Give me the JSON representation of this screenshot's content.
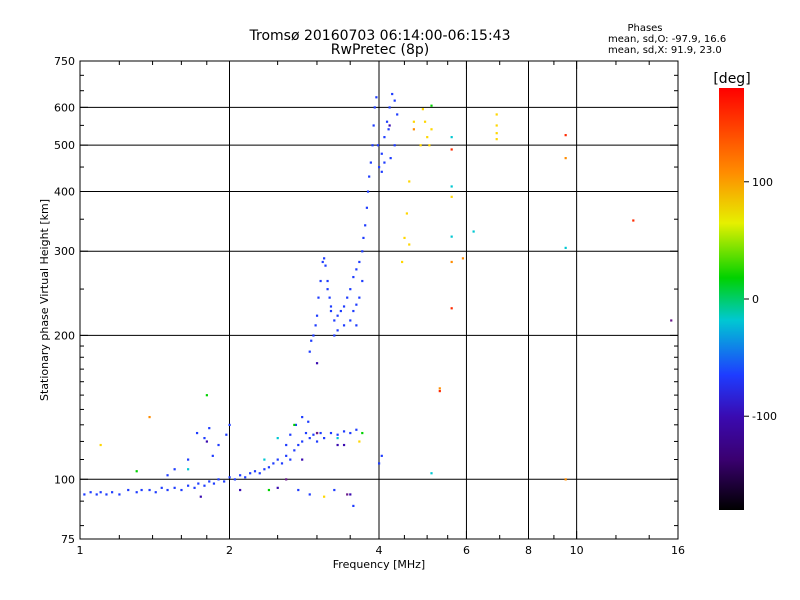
{
  "header": {
    "title": "Tromsø 20160703 06:14:00-06:15:43",
    "subtitle": "RwPretec (8p)",
    "stats_title": "Phases",
    "stats_line1": "mean, sd,O: -97.9, 16.6",
    "stats_line2": "mean, sd,X:  91.9, 23.0"
  },
  "colorbar": {
    "unit_label": "[deg]",
    "ticks": [
      {
        "value": 100,
        "label": "100"
      },
      {
        "value": 0,
        "label": "0"
      },
      {
        "value": -100,
        "label": "-100"
      }
    ],
    "range": [
      -180,
      180
    ]
  },
  "chart_data": {
    "type": "scatter",
    "xlabel": "Frequency [MHz]",
    "ylabel": "Stationary phase Virtual Height [km]",
    "xscale": "log",
    "yscale": "log",
    "xlim": [
      1,
      16
    ],
    "ylim": [
      75,
      750
    ],
    "x_ticks": [
      {
        "value": 1,
        "label": "1"
      },
      {
        "value": 2,
        "label": "2"
      },
      {
        "value": 4,
        "label": "4"
      },
      {
        "value": 6,
        "label": "6"
      },
      {
        "value": 8,
        "label": "8"
      },
      {
        "value": 10,
        "label": "10"
      },
      {
        "value": 16,
        "label": "16"
      }
    ],
    "y_ticks": [
      {
        "value": 75,
        "label": "75"
      },
      {
        "value": 100,
        "label": "100"
      },
      {
        "value": 200,
        "label": "200"
      },
      {
        "value": 300,
        "label": "300"
      },
      {
        "value": 400,
        "label": "400"
      },
      {
        "value": 500,
        "label": "500"
      },
      {
        "value": 600,
        "label": "600"
      },
      {
        "value": 750,
        "label": "750"
      }
    ],
    "grid_x": [
      2,
      4,
      6,
      8,
      10
    ],
    "grid_y": [
      100,
      200,
      300,
      400,
      500,
      600
    ],
    "minor_x": [
      1.2,
      1.4,
      1.6,
      1.8,
      2.5,
      3,
      3.5,
      4.5,
      5,
      5.5,
      7,
      9,
      12,
      14
    ],
    "minor_y": [
      80,
      90,
      110,
      120,
      130,
      140,
      150,
      160,
      170,
      180,
      190,
      250,
      350,
      450,
      550,
      650,
      700
    ],
    "series": [
      {
        "color": "#1e3cff",
        "points": [
          [
            1.02,
            93
          ],
          [
            1.05,
            94
          ],
          [
            1.08,
            93
          ],
          [
            1.1,
            94
          ],
          [
            1.13,
            93
          ],
          [
            1.16,
            94
          ],
          [
            1.2,
            93
          ],
          [
            1.25,
            95
          ],
          [
            1.3,
            94
          ],
          [
            1.33,
            95
          ],
          [
            1.38,
            95
          ],
          [
            1.42,
            94
          ],
          [
            1.46,
            96
          ],
          [
            1.5,
            95
          ],
          [
            1.55,
            96
          ],
          [
            1.6,
            95
          ],
          [
            1.65,
            97
          ],
          [
            1.7,
            96
          ],
          [
            1.73,
            98
          ],
          [
            1.78,
            97
          ],
          [
            1.82,
            99
          ],
          [
            1.86,
            98
          ],
          [
            1.9,
            100
          ],
          [
            1.95,
            99
          ],
          [
            2.0,
            101
          ],
          [
            2.05,
            100
          ],
          [
            2.1,
            102
          ],
          [
            2.15,
            101
          ],
          [
            2.2,
            103
          ],
          [
            2.25,
            104
          ],
          [
            2.3,
            103
          ],
          [
            2.35,
            105
          ],
          [
            2.4,
            106
          ],
          [
            2.45,
            108
          ],
          [
            2.5,
            110
          ],
          [
            2.55,
            108
          ],
          [
            2.6,
            112
          ],
          [
            2.65,
            110
          ],
          [
            2.7,
            115
          ],
          [
            2.75,
            118
          ],
          [
            2.8,
            120
          ],
          [
            2.85,
            125
          ],
          [
            2.9,
            122
          ],
          [
            2.95,
            124
          ],
          [
            3.0,
            120
          ],
          [
            3.1,
            122
          ],
          [
            3.2,
            125
          ],
          [
            3.3,
            124
          ],
          [
            3.4,
            126
          ],
          [
            3.5,
            125
          ],
          [
            3.6,
            127
          ],
          [
            1.72,
            125
          ],
          [
            1.78,
            122
          ],
          [
            1.82,
            128
          ],
          [
            1.9,
            118
          ],
          [
            1.97,
            124
          ],
          [
            2.0,
            130
          ],
          [
            1.85,
            112
          ],
          [
            1.65,
            110
          ],
          [
            1.55,
            105
          ],
          [
            1.5,
            102
          ],
          [
            2.6,
            118
          ],
          [
            2.65,
            124
          ],
          [
            2.72,
            130
          ],
          [
            2.8,
            135
          ],
          [
            2.88,
            132
          ],
          [
            3.05,
            125
          ],
          [
            2.9,
            185
          ],
          [
            2.92,
            195
          ],
          [
            2.95,
            200
          ],
          [
            2.98,
            210
          ],
          [
            3.0,
            220
          ],
          [
            3.02,
            240
          ],
          [
            3.05,
            260
          ],
          [
            3.08,
            285
          ],
          [
            3.1,
            290
          ],
          [
            3.12,
            280
          ],
          [
            3.15,
            260
          ],
          [
            3.18,
            240
          ],
          [
            3.2,
            225
          ],
          [
            3.25,
            215
          ],
          [
            3.3,
            220
          ],
          [
            3.35,
            225
          ],
          [
            3.4,
            230
          ],
          [
            3.45,
            240
          ],
          [
            3.5,
            250
          ],
          [
            3.55,
            265
          ],
          [
            3.6,
            275
          ],
          [
            3.65,
            285
          ],
          [
            3.7,
            300
          ],
          [
            3.72,
            320
          ],
          [
            3.75,
            340
          ],
          [
            3.78,
            370
          ],
          [
            3.8,
            400
          ],
          [
            3.82,
            430
          ],
          [
            3.85,
            460
          ],
          [
            3.88,
            500
          ],
          [
            3.9,
            550
          ],
          [
            3.92,
            600
          ],
          [
            3.95,
            630
          ],
          [
            3.25,
            200
          ],
          [
            3.3,
            205
          ],
          [
            3.4,
            210
          ],
          [
            3.5,
            215
          ],
          [
            3.55,
            225
          ],
          [
            3.6,
            232
          ],
          [
            3.65,
            240
          ],
          [
            3.2,
            230
          ],
          [
            3.15,
            250
          ],
          [
            3.6,
            210
          ],
          [
            3.7,
            260
          ],
          [
            4.0,
            450
          ],
          [
            4.05,
            480
          ],
          [
            4.1,
            520
          ],
          [
            4.15,
            560
          ],
          [
            4.2,
            600
          ],
          [
            4.25,
            640
          ],
          [
            4.3,
            620
          ],
          [
            4.35,
            580
          ],
          [
            4.1,
            460
          ],
          [
            4.05,
            440
          ],
          [
            3.98,
            500
          ],
          [
            4.18,
            540
          ],
          [
            4.22,
            470
          ],
          [
            4.3,
            500
          ],
          [
            4.0,
            108
          ],
          [
            4.05,
            112
          ],
          [
            3.55,
            88
          ],
          [
            3.25,
            95
          ],
          [
            2.9,
            93
          ],
          [
            2.75,
            95
          ]
        ]
      },
      {
        "color": "#3a0ab0",
        "points": [
          [
            1.75,
            92
          ],
          [
            2.1,
            95
          ],
          [
            2.8,
            110
          ],
          [
            3.3,
            118
          ],
          [
            3.5,
            93
          ],
          [
            4.2,
            550
          ],
          [
            1.8,
            120
          ],
          [
            3.0,
            175
          ],
          [
            3.4,
            118
          ],
          [
            2.5,
            96
          ]
        ]
      },
      {
        "color": "#00c8d2",
        "points": [
          [
            5.6,
            520
          ],
          [
            5.6,
            410
          ],
          [
            5.6,
            322
          ],
          [
            6.2,
            330
          ],
          [
            9.5,
            305
          ],
          [
            2.5,
            122
          ],
          [
            1.65,
            105
          ],
          [
            3.3,
            122
          ],
          [
            2.35,
            110
          ],
          [
            5.1,
            103
          ]
        ]
      },
      {
        "color": "#00d200",
        "points": [
          [
            5.1,
            605
          ],
          [
            3.7,
            125
          ],
          [
            2.4,
            95
          ],
          [
            2.7,
            130
          ],
          [
            1.8,
            150
          ],
          [
            1.3,
            104
          ]
        ]
      },
      {
        "color": "#ffd700",
        "points": [
          [
            4.9,
            595
          ],
          [
            4.95,
            560
          ],
          [
            5.0,
            520
          ],
          [
            5.05,
            500
          ],
          [
            5.1,
            540
          ],
          [
            4.85,
            500
          ],
          [
            4.7,
            560
          ],
          [
            6.9,
            580
          ],
          [
            6.9,
            550
          ],
          [
            6.9,
            515
          ],
          [
            6.9,
            530
          ],
          [
            4.6,
            420
          ],
          [
            4.55,
            360
          ],
          [
            4.5,
            320
          ],
          [
            4.45,
            285
          ],
          [
            4.6,
            310
          ],
          [
            5.6,
            390
          ],
          [
            3.65,
            120
          ],
          [
            1.1,
            118
          ],
          [
            3.1,
            92
          ]
        ]
      },
      {
        "color": "#ff8c00",
        "points": [
          [
            9.5,
            470
          ],
          [
            5.6,
            285
          ],
          [
            5.9,
            290
          ],
          [
            1.38,
            135
          ],
          [
            4.7,
            540
          ],
          [
            9.5,
            100
          ],
          [
            5.3,
            155
          ]
        ]
      },
      {
        "color": "#ff2a00",
        "points": [
          [
            9.5,
            525
          ],
          [
            5.6,
            490
          ],
          [
            5.6,
            228
          ],
          [
            13,
            348
          ],
          [
            5.3,
            153
          ],
          [
            3.0,
            125
          ]
        ]
      },
      {
        "color": "#6a1a8a",
        "points": [
          [
            15.5,
            215
          ],
          [
            3.45,
            93
          ],
          [
            3.0,
            125
          ],
          [
            2.6,
            100
          ]
        ]
      }
    ]
  }
}
